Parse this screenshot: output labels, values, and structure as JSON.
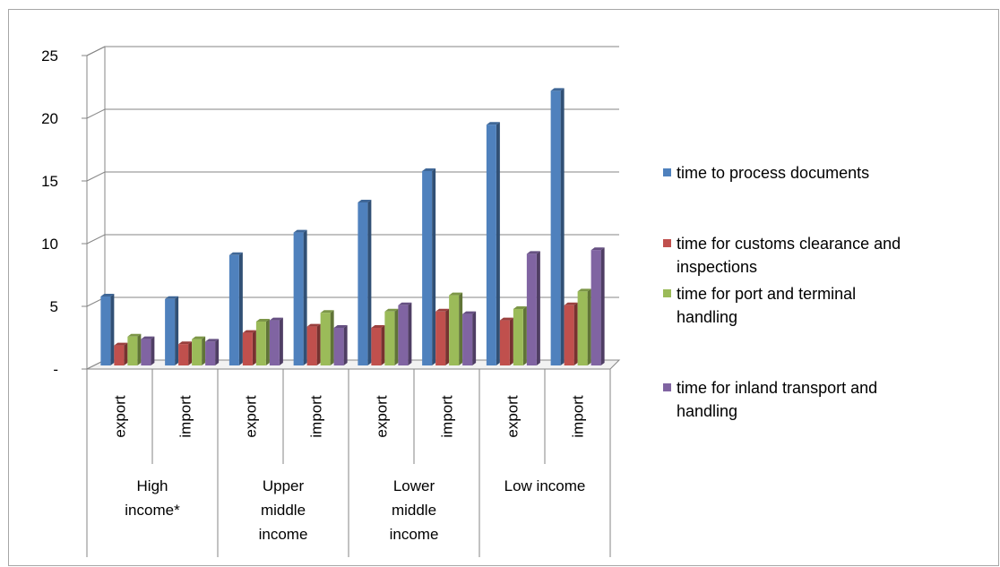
{
  "chart_data": {
    "type": "bar",
    "title": "",
    "xlabel": "",
    "ylabel": "",
    "ylim": [
      0,
      25
    ],
    "yticks": [
      "-",
      "5",
      "10",
      "15",
      "20",
      "25"
    ],
    "grid": true,
    "legend_position": "right",
    "groups": [
      {
        "label": "High income*",
        "lines": [
          "High",
          "income*"
        ]
      },
      {
        "label": "Upper middle income",
        "lines": [
          "Upper",
          "middle",
          "income"
        ]
      },
      {
        "label": "Lower middle income",
        "lines": [
          "Lower",
          "middle",
          "income"
        ]
      },
      {
        "label": "Low income",
        "lines": [
          "Low income"
        ]
      }
    ],
    "categories": [
      "export",
      "import",
      "export",
      "import",
      "export",
      "import",
      "export",
      "import"
    ],
    "series": [
      {
        "name": "time to process documents",
        "color": "#4f81bd",
        "values": [
          5.5,
          5.3,
          8.8,
          10.6,
          13.0,
          15.5,
          19.2,
          21.9
        ]
      },
      {
        "name": "time for customs clearance and inspections",
        "color": "#c0504d",
        "values": [
          1.6,
          1.7,
          2.6,
          3.1,
          3.0,
          4.3,
          3.6,
          4.8
        ]
      },
      {
        "name": "time for port and terminal handling",
        "color": "#9bbb59",
        "values": [
          2.3,
          2.1,
          3.5,
          4.2,
          4.3,
          5.6,
          4.5,
          5.9
        ]
      },
      {
        "name": "time for inland transport and handling",
        "color": "#8064a2",
        "values": [
          2.1,
          1.9,
          3.6,
          3.0,
          4.8,
          4.1,
          8.9,
          9.2
        ]
      }
    ],
    "legend": [
      {
        "lines": [
          "time to process documents"
        ]
      },
      {
        "lines": [
          "time for customs clearance and",
          "inspections"
        ]
      },
      {
        "lines": [
          "time for port and terminal",
          "handling"
        ]
      },
      {
        "lines": [
          "time for inland transport and",
          "handling"
        ]
      }
    ]
  }
}
